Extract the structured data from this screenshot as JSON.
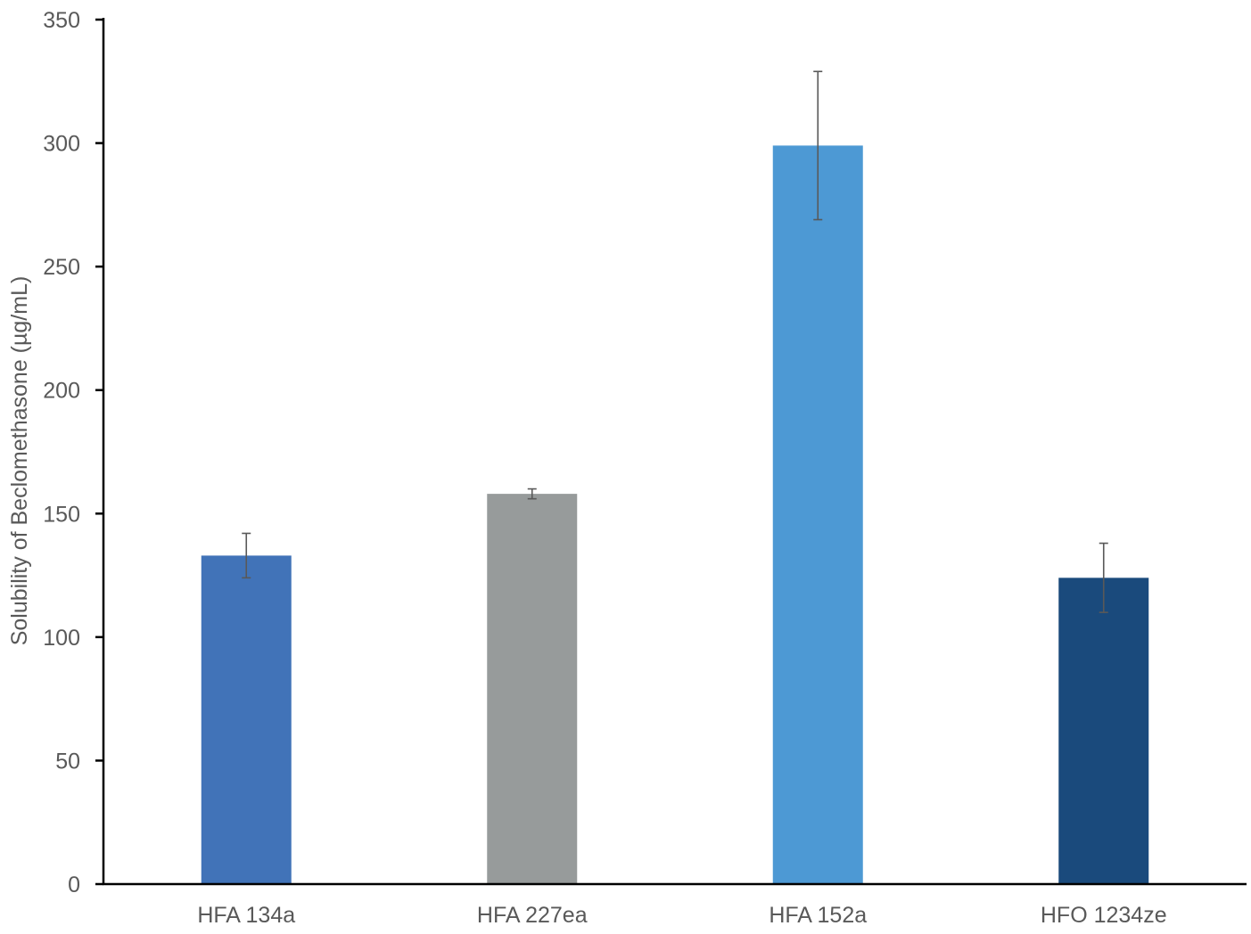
{
  "chart_data": {
    "type": "bar",
    "title": "",
    "xlabel": "",
    "ylabel": "Solubility of Beclomethasone (µg/mL)",
    "categories": [
      "HFA 134a",
      "HFA 227ea",
      "HFA 152a",
      "HFO 1234ze"
    ],
    "values": [
      133,
      158,
      299,
      124
    ],
    "error": [
      9,
      2,
      30,
      14
    ],
    "colors": [
      "#4173B8",
      "#979B9B",
      "#4D99D4",
      "#1A4A7C"
    ],
    "ylim": [
      0,
      350
    ],
    "yticks": [
      0,
      50,
      100,
      150,
      200,
      250,
      300,
      350
    ],
    "grid": false,
    "legend": "none"
  }
}
